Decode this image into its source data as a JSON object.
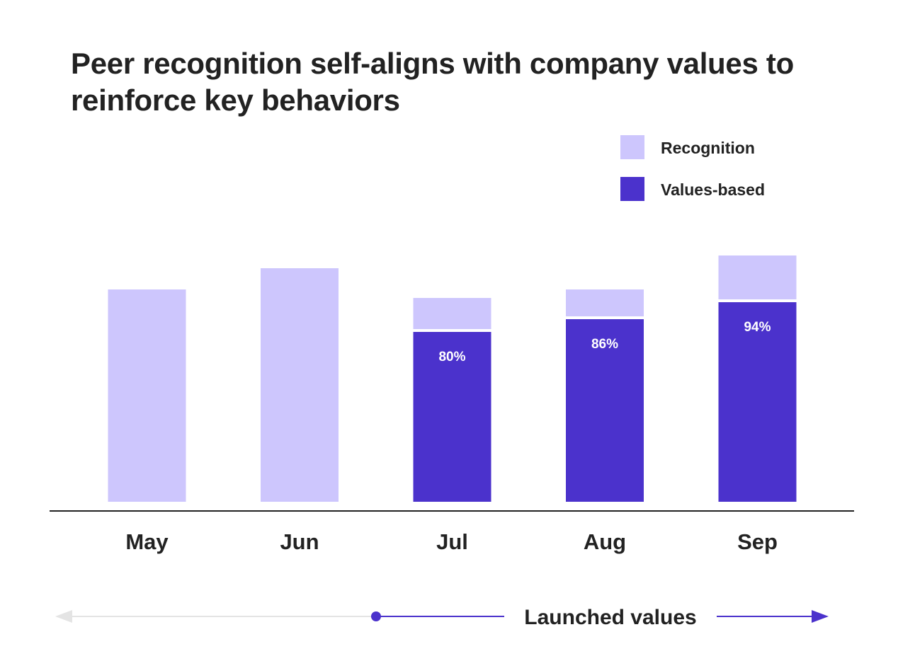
{
  "chart_data": {
    "type": "bar",
    "title": "Peer recognition self-aligns with company values to reinforce key behaviors",
    "categories": [
      "May",
      "Jun",
      "Jul",
      "Aug",
      "Sep"
    ],
    "series": [
      {
        "name": "Recognition",
        "values": [
          100,
          110,
          96,
          100,
          116
        ]
      },
      {
        "name": "Values-based",
        "values": [
          null,
          null,
          80,
          86,
          94
        ]
      }
    ],
    "data_labels": [
      null,
      null,
      "80%",
      "86%",
      "94%"
    ],
    "legend": {
      "placement": "top-right"
    },
    "colors": {
      "Recognition": "#cdc6fd",
      "Values-based": "#4b32cc"
    },
    "grid": false,
    "ylim": [
      0,
      120
    ],
    "annotation": {
      "label": "Launched values",
      "start_category": "Jul"
    }
  },
  "colors": {
    "axis": "#222222",
    "timeline_muted": "#e4e4e4",
    "timeline_accent": "#4b32cc"
  }
}
